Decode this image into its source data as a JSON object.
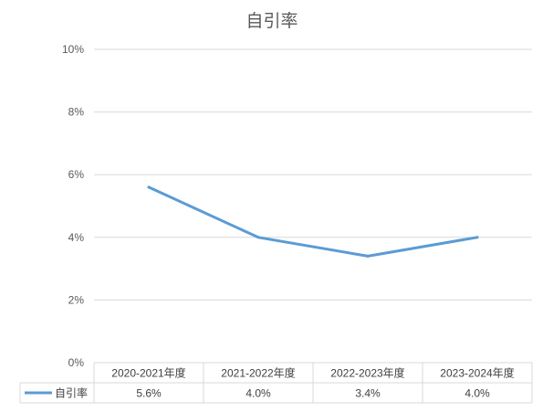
{
  "chart_data": {
    "type": "line",
    "title": "自引率",
    "categories": [
      "2020-2021年度",
      "2021-2022年度",
      "2022-2023年度",
      "2023-2024年度"
    ],
    "series": [
      {
        "name": "自引率",
        "values": [
          5.6,
          4.0,
          3.4,
          4.0
        ],
        "color": "#5b9bd5"
      }
    ],
    "ylim": [
      0,
      10
    ],
    "ytick_values": [
      0,
      2,
      4,
      6,
      8,
      10
    ],
    "ytick_labels": [
      "0%",
      "2%",
      "4%",
      "6%",
      "8%",
      "10%"
    ],
    "data_table": {
      "values_text": [
        "5.6%",
        "4.0%",
        "3.4%",
        "4.0%"
      ]
    },
    "grid": true,
    "legend": "bottom-left",
    "colors": {
      "text": "#595959",
      "table_text": "#404040",
      "grid": "#d9d9d9"
    }
  }
}
